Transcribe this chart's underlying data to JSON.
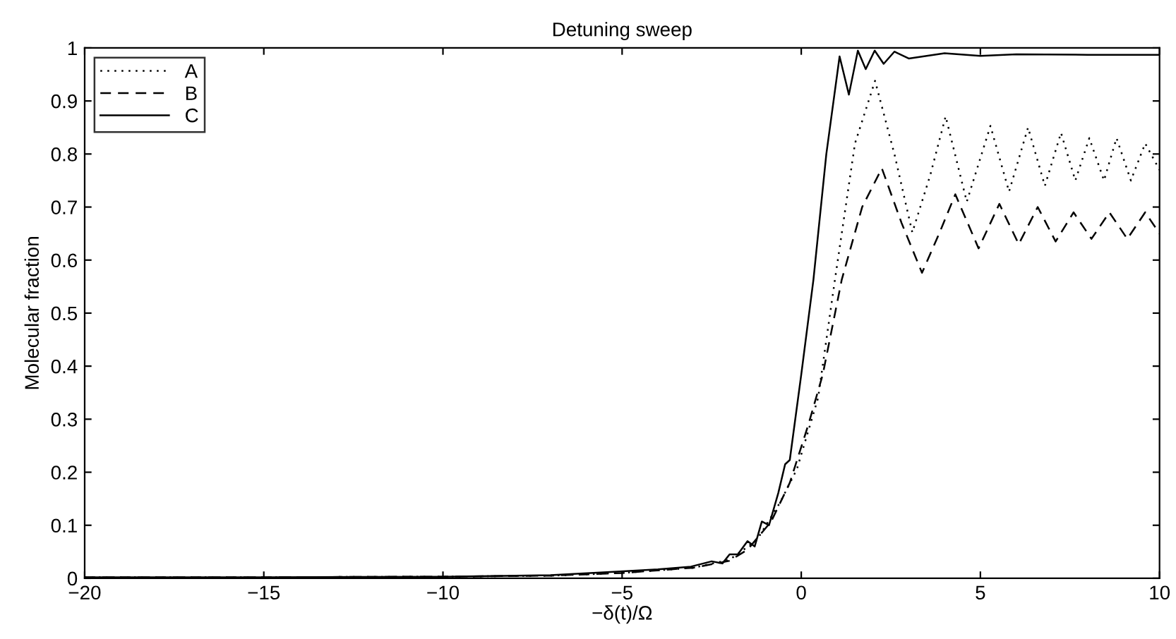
{
  "chart_data": {
    "type": "line",
    "title": "Detuning sweep",
    "xlabel": "−δ(t)/Ω",
    "ylabel": "Molecular fraction",
    "xlim": [
      -20,
      10
    ],
    "ylim": [
      0,
      1
    ],
    "xticks": [
      {
        "value": -20,
        "label": "−20"
      },
      {
        "value": -15,
        "label": "−15"
      },
      {
        "value": -10,
        "label": "−10"
      },
      {
        "value": -5,
        "label": "−5"
      },
      0,
      5,
      10
    ],
    "yticks": [
      0,
      0.1,
      0.2,
      0.3,
      0.4,
      0.5,
      0.6,
      0.7,
      0.8,
      0.9,
      1
    ],
    "grid": false,
    "legend": "top left",
    "series": [
      {
        "name": "A",
        "color": "#000000",
        "line_style": "dotted",
        "x": [
          -20,
          -15,
          -10,
          -7,
          -5,
          -3,
          -2,
          -1.24,
          -0.59,
          -0.12,
          0.47,
          0.94,
          1.5,
          2.06,
          2.6,
          3.1,
          3.6,
          4.03,
          4.62,
          5.28,
          5.8,
          6.33,
          6.8,
          7.25,
          7.65,
          8.04,
          8.45,
          8.8,
          9.2,
          9.6,
          10
        ],
        "values": [
          0.002,
          0.002,
          0.003,
          0.005,
          0.01,
          0.02,
          0.035,
          0.072,
          0.143,
          0.206,
          0.34,
          0.563,
          0.82,
          0.938,
          0.8,
          0.652,
          0.76,
          0.871,
          0.71,
          0.853,
          0.729,
          0.85,
          0.74,
          0.84,
          0.75,
          0.83,
          0.75,
          0.83,
          0.75,
          0.82,
          0.77
        ]
      },
      {
        "name": "B",
        "color": "#000000",
        "line_style": "dashed",
        "x": [
          -20,
          -15,
          -10,
          -7,
          -5,
          -3,
          -2,
          -1.5,
          -0.84,
          -0.32,
          0.2,
          0.6,
          1.13,
          1.7,
          2.25,
          2.8,
          3.37,
          3.85,
          4.3,
          4.95,
          5.53,
          6.07,
          6.6,
          7.1,
          7.6,
          8.1,
          8.6,
          9.1,
          9.6,
          10
        ],
        "values": [
          0.002,
          0.002,
          0.003,
          0.005,
          0.01,
          0.02,
          0.033,
          0.054,
          0.107,
          0.18,
          0.29,
          0.384,
          0.563,
          0.7,
          0.773,
          0.67,
          0.576,
          0.65,
          0.724,
          0.622,
          0.706,
          0.63,
          0.7,
          0.635,
          0.69,
          0.64,
          0.69,
          0.64,
          0.69,
          0.65
        ]
      },
      {
        "name": "C",
        "color": "#000000",
        "line_style": "solid",
        "x": [
          -20,
          -15,
          -10,
          -7,
          -5.06,
          -4,
          -3.08,
          -2.5,
          -2.2,
          -2.0,
          -1.77,
          -1.5,
          -1.3,
          -1.1,
          -0.9,
          -0.64,
          -0.45,
          -0.32,
          0,
          0.34,
          0.7,
          1.07,
          1.33,
          1.58,
          1.8,
          2.05,
          2.3,
          2.6,
          3,
          4,
          5,
          6,
          8,
          10
        ],
        "values": [
          0.002,
          0.002,
          0.003,
          0.006,
          0.013,
          0.017,
          0.022,
          0.032,
          0.028,
          0.045,
          0.045,
          0.07,
          0.06,
          0.107,
          0.1,
          0.161,
          0.215,
          0.223,
          0.384,
          0.563,
          0.8,
          0.984,
          0.912,
          0.995,
          0.96,
          0.995,
          0.97,
          0.993,
          0.98,
          0.99,
          0.985,
          0.988,
          0.987,
          0.987
        ]
      }
    ]
  }
}
